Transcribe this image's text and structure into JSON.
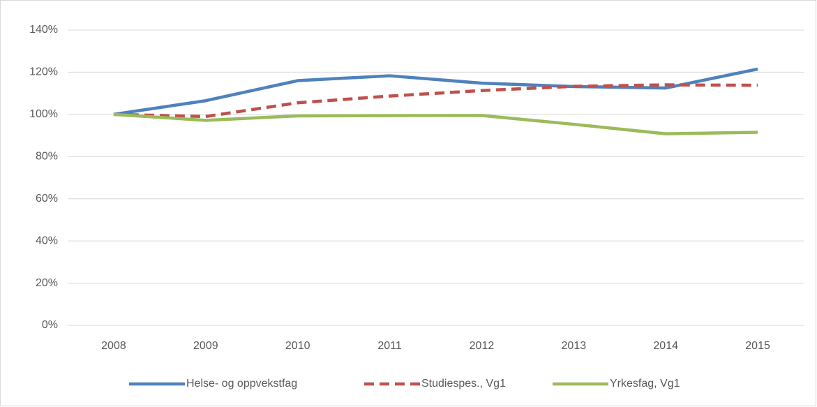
{
  "chart_data": {
    "type": "line",
    "categories": [
      "2008",
      "2009",
      "2010",
      "2011",
      "2012",
      "2013",
      "2014",
      "2015"
    ],
    "series": [
      {
        "name": "Helse- og oppvekstfag",
        "color": "#4f81bd",
        "style": "solid",
        "values": [
          100,
          106.5,
          116,
          118.3,
          114.8,
          113.2,
          112.5,
          121.5
        ]
      },
      {
        "name": "Studiespes., Vg1",
        "color": "#c0504d",
        "style": "dashed",
        "values": [
          100,
          99,
          105.5,
          108.7,
          111.3,
          113.3,
          114,
          113.8
        ]
      },
      {
        "name": "Yrkesfag, Vg1",
        "color": "#9bbb59",
        "style": "solid",
        "values": [
          100,
          97.2,
          99.3,
          99.4,
          99.5,
          95.3,
          90.8,
          91.5
        ]
      }
    ],
    "ylim": [
      0,
      140
    ],
    "yticks": [
      {
        "value": 0,
        "label": "0%"
      },
      {
        "value": 20,
        "label": "20%"
      },
      {
        "value": 40,
        "label": "40%"
      },
      {
        "value": 60,
        "label": "60%"
      },
      {
        "value": 80,
        "label": "80%"
      },
      {
        "value": 100,
        "label": "100%"
      },
      {
        "value": 120,
        "label": "120%"
      },
      {
        "value": 140,
        "label": "140%"
      }
    ],
    "grid": true,
    "legend": "bottom"
  }
}
